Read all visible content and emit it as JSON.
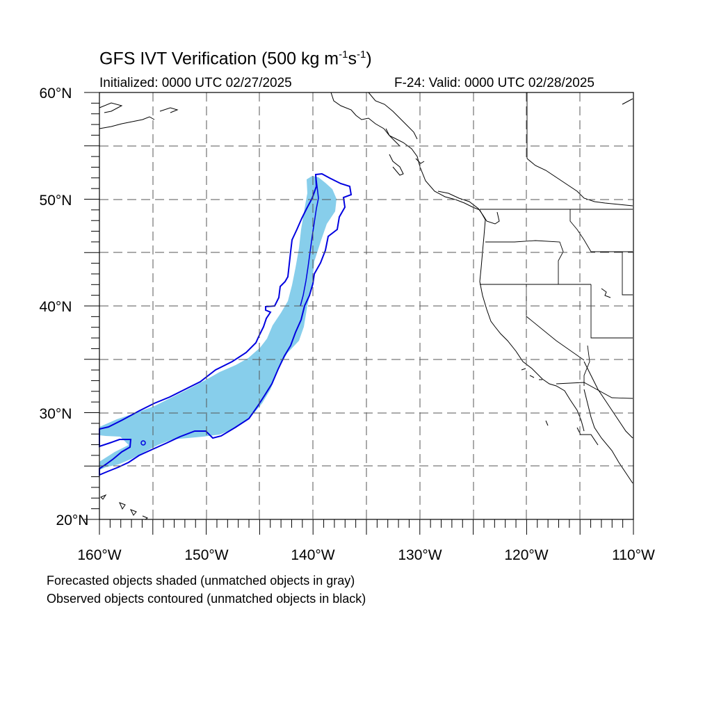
{
  "title": {
    "main": "GFS IVT Verification (500 kg m",
    "sup1": "-1",
    "mid": "s",
    "sup2": "-1",
    "end": ")"
  },
  "initialized": "Initialized: 0000 UTC 02/27/2025",
  "valid": "F-24: Valid: 0000 UTC 02/28/2025",
  "map_extent": {
    "lon": [
      -160,
      -110
    ],
    "lat": [
      20,
      60
    ]
  },
  "lat_labels": [
    "20°N",
    "30°N",
    "40°N",
    "50°N",
    "60°N"
  ],
  "lon_labels": [
    "160°W",
    "150°W",
    "140°W",
    "130°W",
    "120°W",
    "110°W"
  ],
  "gridlines": {
    "style": "dashed",
    "lat_every": 5,
    "lon_every": 5
  },
  "colors": {
    "forecast_fill": "#87ceeb",
    "observed_contour": "#0000e0",
    "coast": "#000000",
    "grid": "#555555"
  },
  "legend_notes": [
    "Forecasted objects shaded (unmatched objects in gray)",
    "Observed objects contoured (unmatched objects in black)"
  ]
}
